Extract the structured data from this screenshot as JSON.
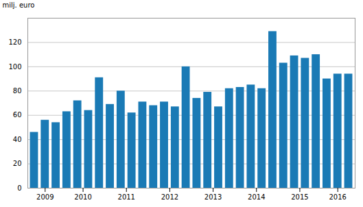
{
  "chart_data": {
    "type": "bar",
    "ylabel": "milj. euro",
    "categories": [
      "2009",
      null,
      null,
      "2010",
      null,
      null,
      null,
      "2011",
      null,
      null,
      null,
      "2012",
      null,
      null,
      null,
      "2013",
      null,
      null,
      null,
      "2014",
      null,
      null,
      null,
      "2015",
      null,
      null,
      null,
      "2016",
      null,
      null
    ],
    "values": [
      46,
      56,
      54,
      63,
      72,
      64,
      91,
      69,
      80,
      62,
      71,
      68,
      71,
      67,
      100,
      74,
      79,
      67,
      82,
      83,
      85,
      82,
      129,
      103,
      109,
      107,
      110,
      90,
      94,
      94
    ],
    "color": "#1a7ab5",
    "ylim": [
      0,
      140
    ],
    "yticks": [
      0,
      20,
      40,
      60,
      80,
      100,
      120
    ],
    "grid": true
  }
}
